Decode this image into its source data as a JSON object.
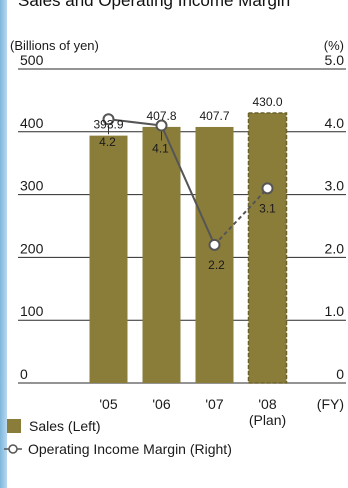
{
  "title": "Sales and Operating Income Margin",
  "chart_data": {
    "type": "bar",
    "categories": [
      "'05",
      "'06",
      "'07",
      "'08"
    ],
    "category_sublabels": [
      "",
      "",
      "",
      "(Plan)"
    ],
    "x_unit": "(FY)",
    "left_axis": {
      "unit": "(Billions of yen)",
      "ylim": [
        0,
        500
      ],
      "ticks": [
        0,
        100,
        200,
        300,
        400,
        500
      ],
      "tick_labels": [
        "0",
        "100",
        "200",
        "300",
        "400",
        "500"
      ]
    },
    "right_axis": {
      "unit": "(%)",
      "ylim": [
        0,
        5
      ],
      "ticks": [
        0,
        1,
        2,
        3,
        4,
        5
      ],
      "tick_labels": [
        "0",
        "1.0",
        "2.0",
        "3.0",
        "4.0",
        "5.0"
      ]
    },
    "series": [
      {
        "name": "Sales (Left)",
        "type": "bar",
        "axis": "left",
        "values": [
          393.9,
          407.8,
          407.7,
          430.0
        ],
        "labels": [
          "393.9",
          "407.8",
          "407.7",
          "430.0"
        ],
        "plan_index": 3
      },
      {
        "name": "Operating Income Margin (Right)",
        "type": "line",
        "axis": "right",
        "x_indices": [
          0,
          1,
          2,
          3
        ],
        "values": [
          4.2,
          4.1,
          2.2,
          3.1
        ],
        "labels": [
          "4.2",
          "4.1",
          "2.2",
          "3.1"
        ],
        "dashed_from_index": 2
      }
    ],
    "grid": "horizontal",
    "colors": {
      "bar": "#8a7d3a",
      "bar_plan_border": "#6b6028",
      "line": "#555555",
      "grid": "#2a2a2a",
      "accent": "#7fb6dc"
    }
  },
  "legend": {
    "sales": "Sales (Left)",
    "margin": "Operating Income Margin (Right)"
  }
}
